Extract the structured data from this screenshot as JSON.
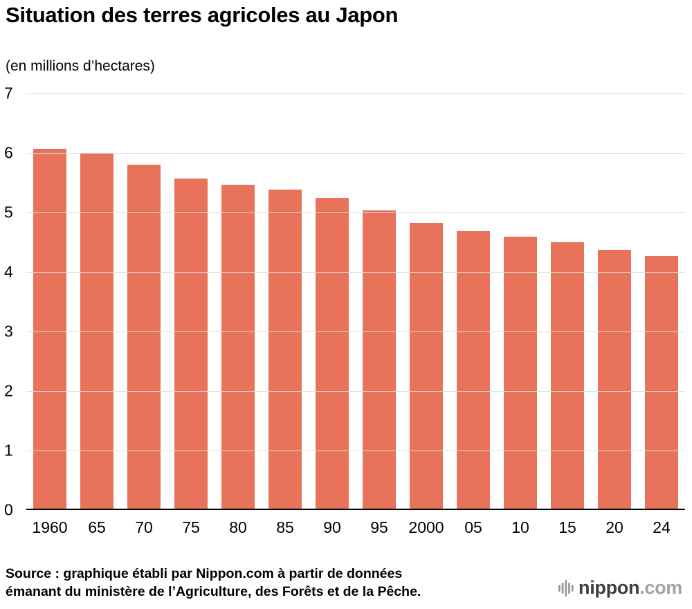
{
  "header": {
    "title": "Situation des terres agricoles au Japon",
    "subtitle": "(en millions d’hectares)"
  },
  "chart_data": {
    "type": "bar",
    "title": "Situation des terres agricoles au Japon",
    "unit_label": "(en millions d’hectares)",
    "categories": [
      "1960",
      "65",
      "70",
      "75",
      "80",
      "85",
      "90",
      "95",
      "2000",
      "05",
      "10",
      "15",
      "20",
      "24"
    ],
    "values": [
      6.07,
      6.0,
      5.8,
      5.57,
      5.46,
      5.38,
      5.24,
      5.04,
      4.83,
      4.69,
      4.59,
      4.5,
      4.37,
      4.27
    ],
    "xlabel": "",
    "ylabel": "",
    "ylim": [
      0,
      7
    ],
    "yticks": [
      0,
      1,
      2,
      3,
      4,
      5,
      6,
      7
    ],
    "grid": true,
    "legend": "none",
    "bar_color": "#e8735a",
    "gridline_color": "#dcdcdc",
    "axis_line_color": "#000000"
  },
  "footer": {
    "source_line1": "Source : graphique établi par Nippon.com à partir de données",
    "source_line2": "émanant du ministère de l’Agriculture, des Forêts et de la Pêche.",
    "logo": {
      "name": "nippon",
      "tld": ".com",
      "icon": "logo-bars-icon",
      "dark_color": "#3e3f42",
      "light_color": "#a2a3a7",
      "icon_color": "#97989c"
    }
  }
}
